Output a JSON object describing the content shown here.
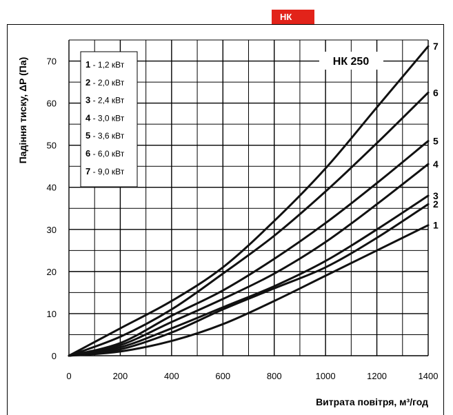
{
  "header": {
    "tab_label": "НК",
    "tab_color": "#e2231a"
  },
  "chart_data": {
    "type": "line",
    "title": "НК 250",
    "xlabel": "Витрата повітря, м³/год",
    "ylabel": "Падіння тиску, ΔP (Па)",
    "xlim": [
      0,
      1400
    ],
    "ylim": [
      0,
      75
    ],
    "x_ticks": [
      "0",
      "200",
      "400",
      "600",
      "800",
      "1000",
      "1200",
      "1400"
    ],
    "y_ticks": [
      "0",
      "10",
      "20",
      "30",
      "40",
      "50",
      "60",
      "70"
    ],
    "grid": true,
    "legend_position": "top-left",
    "legend": [
      {
        "num": "1",
        "text": " - 1,2 кВт"
      },
      {
        "num": "2",
        "text": " - 2,0 кВт"
      },
      {
        "num": "3",
        "text": " - 2,4 кВт"
      },
      {
        "num": "4",
        "text": " - 3,0 кВт"
      },
      {
        "num": "5",
        "text": " - 3,6 кВт"
      },
      {
        "num": "6",
        "text": " - 6,0 кВт"
      },
      {
        "num": "7",
        "text": " - 9,0 кВт"
      }
    ],
    "x": [
      0,
      200,
      400,
      600,
      800,
      1000,
      1200,
      1400
    ],
    "series": [
      {
        "name": "1",
        "values": [
          0,
          1.0,
          3.5,
          7.5,
          13.0,
          19.0,
          25.0,
          31.0
        ]
      },
      {
        "name": "2",
        "values": [
          0,
          1.5,
          5.5,
          11.0,
          16.0,
          21.0,
          28.0,
          36.0
        ]
      },
      {
        "name": "3",
        "values": [
          0,
          2.0,
          6.5,
          11.5,
          16.5,
          22.5,
          30.0,
          38.0
        ]
      },
      {
        "name": "4",
        "values": [
          0,
          2.5,
          8.0,
          13.5,
          19.5,
          27.0,
          36.0,
          45.5
        ]
      },
      {
        "name": "5",
        "values": [
          0,
          3.0,
          9.5,
          15.5,
          23.0,
          31.5,
          41.0,
          51.0
        ]
      },
      {
        "name": "6",
        "values": [
          0,
          4.5,
          11.0,
          19.5,
          28.5,
          39.0,
          50.5,
          62.5
        ]
      },
      {
        "name": "7",
        "values": [
          0,
          6.5,
          13.0,
          21.0,
          32.0,
          44.5,
          59.0,
          73.5
        ]
      }
    ]
  }
}
